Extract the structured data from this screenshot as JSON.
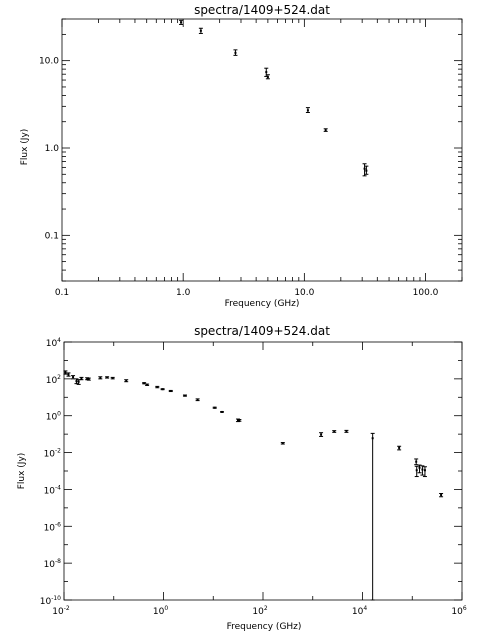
{
  "chart_data": [
    {
      "type": "scatter",
      "title": "spectra/1409+524.dat",
      "xlabel": "Frequency (GHz)",
      "ylabel": "Flux (Jy)",
      "xscale": "log",
      "yscale": "log",
      "xlim": [
        0.1,
        200
      ],
      "ylim": [
        0.03,
        30
      ],
      "grid": false,
      "legend": "none",
      "x_tick_labels": [
        "0.1",
        "1.0",
        "10.0",
        "100.0"
      ],
      "y_tick_labels": [
        "0.1",
        "1.0",
        "10.0"
      ],
      "points": [
        {
          "x": 0.96,
          "y": 27.5,
          "ylo": 26.0,
          "yhi": 29.0
        },
        {
          "x": 1.4,
          "y": 22.0,
          "ylo": 20.5,
          "yhi": 23.5
        },
        {
          "x": 2.7,
          "y": 12.3,
          "ylo": 11.5,
          "yhi": 13.3
        },
        {
          "x": 4.85,
          "y": 7.4,
          "ylo": 6.6,
          "yhi": 8.2
        },
        {
          "x": 5.0,
          "y": 6.5,
          "ylo": 6.2,
          "yhi": 6.9
        },
        {
          "x": 10.7,
          "y": 2.7,
          "ylo": 2.55,
          "yhi": 2.9
        },
        {
          "x": 15.0,
          "y": 1.6,
          "ylo": 1.55,
          "yhi": 1.66
        },
        {
          "x": 31.4,
          "y": 0.58,
          "ylo": 0.48,
          "yhi": 0.66
        },
        {
          "x": 32.5,
          "y": 0.55,
          "ylo": 0.5,
          "yhi": 0.62
        }
      ]
    },
    {
      "type": "scatter",
      "title": "spectra/1409+524.dat",
      "xlabel": "Frequency (GHz)",
      "ylabel": "Flux (Jy)",
      "xscale": "log",
      "yscale": "log",
      "xlim": [
        0.01,
        1000000
      ],
      "ylim": [
        1e-10,
        10000
      ],
      "grid": false,
      "legend": "none",
      "x_ticks": [
        {
          "base": "10",
          "exp": "-2"
        },
        {
          "base": "10",
          "exp": "0"
        },
        {
          "base": "10",
          "exp": "2"
        },
        {
          "base": "10",
          "exp": "4"
        },
        {
          "base": "10",
          "exp": "6"
        }
      ],
      "y_ticks": [
        {
          "base": "10",
          "exp": "4"
        },
        {
          "base": "10",
          "exp": "2"
        },
        {
          "base": "10",
          "exp": "0"
        },
        {
          "base": "10",
          "exp": "-2"
        },
        {
          "base": "10",
          "exp": "-4"
        },
        {
          "base": "10",
          "exp": "-6"
        },
        {
          "base": "10",
          "exp": "-8"
        },
        {
          "base": "10",
          "exp": "-10"
        }
      ],
      "points": [
        {
          "x": 0.0107,
          "y": 220,
          "ylo": 180,
          "yhi": 270
        },
        {
          "x": 0.0123,
          "y": 170,
          "ylo": 140,
          "yhi": 210
        },
        {
          "x": 0.0152,
          "y": 125,
          "ylo": 100,
          "yhi": 150
        },
        {
          "x": 0.0178,
          "y": 75,
          "ylo": 55,
          "yhi": 100
        },
        {
          "x": 0.0197,
          "y": 70,
          "ylo": 50,
          "yhi": 90
        },
        {
          "x": 0.0224,
          "y": 105,
          "ylo": 90,
          "yhi": 120
        },
        {
          "x": 0.0292,
          "y": 100,
          "ylo": 90,
          "yhi": 115
        },
        {
          "x": 0.0315,
          "y": 95,
          "ylo": 85,
          "yhi": 110
        },
        {
          "x": 0.0537,
          "y": 115,
          "ylo": 100,
          "yhi": 130
        },
        {
          "x": 0.0735,
          "y": 120,
          "ylo": 110,
          "yhi": 130
        },
        {
          "x": 0.0952,
          "y": 110,
          "ylo": 100,
          "yhi": 120
        },
        {
          "x": 0.178,
          "y": 80,
          "ylo": 70,
          "yhi": 90
        },
        {
          "x": 0.408,
          "y": 58,
          "ylo": 54,
          "yhi": 62
        },
        {
          "x": 0.468,
          "y": 48,
          "ylo": 44,
          "yhi": 52
        },
        {
          "x": 0.75,
          "y": 36,
          "ylo": 33,
          "yhi": 39
        },
        {
          "x": 0.96,
          "y": 27.5,
          "ylo": 26,
          "yhi": 29
        },
        {
          "x": 1.4,
          "y": 22,
          "ylo": 20.5,
          "yhi": 23.5
        },
        {
          "x": 2.7,
          "y": 12.3,
          "ylo": 11.5,
          "yhi": 13.3
        },
        {
          "x": 4.85,
          "y": 7.4,
          "ylo": 6.6,
          "yhi": 8.2
        },
        {
          "x": 10.7,
          "y": 2.7,
          "ylo": 2.55,
          "yhi": 2.9
        },
        {
          "x": 15.0,
          "y": 1.6,
          "ylo": 1.55,
          "yhi": 1.66
        },
        {
          "x": 31.4,
          "y": 0.58,
          "ylo": 0.48,
          "yhi": 0.66
        },
        {
          "x": 33.5,
          "y": 0.55,
          "ylo": 0.5,
          "yhi": 0.62
        },
        {
          "x": 250,
          "y": 0.032,
          "ylo": 0.029,
          "yhi": 0.035
        },
        {
          "x": 1470,
          "y": 0.095,
          "ylo": 0.075,
          "yhi": 0.12
        },
        {
          "x": 2700,
          "y": 0.14,
          "ylo": 0.125,
          "yhi": 0.155
        },
        {
          "x": 4750,
          "y": 0.14,
          "ylo": 0.125,
          "yhi": 0.16
        },
        {
          "x": 16000,
          "y": 0.06,
          "ylo": 1e-10,
          "yhi": 0.11
        },
        {
          "x": 54500,
          "y": 0.018,
          "ylo": 0.014,
          "yhi": 0.022
        },
        {
          "x": 120000,
          "y": 0.0032,
          "ylo": 0.0022,
          "yhi": 0.0045
        },
        {
          "x": 123000,
          "y": 0.0011,
          "ylo": 0.0005,
          "yhi": 0.0018
        },
        {
          "x": 140000,
          "y": 0.0015,
          "ylo": 0.0008,
          "yhi": 0.0021
        },
        {
          "x": 160000,
          "y": 0.0012,
          "ylo": 0.0006,
          "yhi": 0.0019
        },
        {
          "x": 180000,
          "y": 0.0011,
          "ylo": 0.0005,
          "yhi": 0.0017
        },
        {
          "x": 380000,
          "y": 5e-05,
          "ylo": 4e-05,
          "yhi": 6e-05
        }
      ]
    }
  ]
}
